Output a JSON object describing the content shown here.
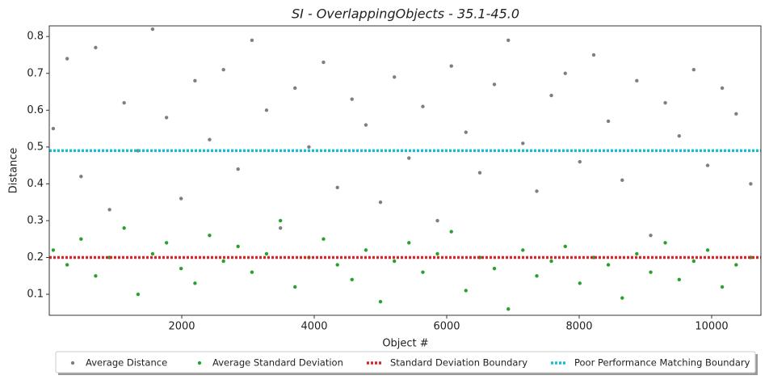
{
  "chart_data": {
    "type": "scatter",
    "title": "SI - OverlappingObjects - 35.1-45.0",
    "x_label": "Object #",
    "y_label": "Distance",
    "xlim": [
      0,
      10744
    ],
    "ylim": [
      0.043,
      0.829
    ],
    "xticks": [
      2000,
      4000,
      6000,
      8000,
      10000
    ],
    "yticks": [
      0.1,
      0.2,
      0.3,
      0.4,
      0.5,
      0.6,
      0.7,
      0.8
    ],
    "series": [
      {
        "name": "Average Distance",
        "color": "#7f7f7f",
        "x": [
          60,
          270,
          480,
          700,
          910,
          1130,
          1340,
          1560,
          1770,
          1990,
          2200,
          2420,
          2630,
          2850,
          3060,
          3280,
          3490,
          3710,
          3920,
          4140,
          4350,
          4570,
          4780,
          5000,
          5210,
          5430,
          5640,
          5860,
          6070,
          6290,
          6500,
          6720,
          6930,
          7150,
          7360,
          7580,
          7790,
          8010,
          8220,
          8440,
          8650,
          8870,
          9080,
          9300,
          9510,
          9730,
          9940,
          10160,
          10370,
          10590
        ],
        "values": [
          0.55,
          0.74,
          0.42,
          0.77,
          0.33,
          0.62,
          0.49,
          0.82,
          0.58,
          0.36,
          0.68,
          0.52,
          0.71,
          0.44,
          0.79,
          0.6,
          0.28,
          0.66,
          0.5,
          0.73,
          0.39,
          0.63,
          0.56,
          0.35,
          0.69,
          0.47,
          0.61,
          0.3,
          0.72,
          0.54,
          0.43,
          0.67,
          0.79,
          0.51,
          0.38,
          0.64,
          0.7,
          0.46,
          0.75,
          0.57,
          0.41,
          0.68,
          0.26,
          0.62,
          0.53,
          0.71,
          0.45,
          0.66,
          0.59,
          0.4
        ]
      },
      {
        "name": "Average Standard Deviation",
        "color": "#2ca02c",
        "x": [
          60,
          270,
          480,
          700,
          910,
          1130,
          1340,
          1560,
          1770,
          1990,
          2200,
          2420,
          2630,
          2850,
          3060,
          3280,
          3490,
          3710,
          3920,
          4140,
          4350,
          4570,
          4780,
          5000,
          5210,
          5430,
          5640,
          5860,
          6070,
          6290,
          6500,
          6720,
          6930,
          7150,
          7360,
          7580,
          7790,
          8010,
          8220,
          8440,
          8650,
          8870,
          9080,
          9300,
          9510,
          9730,
          9940,
          10160,
          10370,
          10590
        ],
        "values": [
          0.22,
          0.18,
          0.25,
          0.15,
          0.2,
          0.28,
          0.1,
          0.21,
          0.24,
          0.17,
          0.13,
          0.26,
          0.19,
          0.23,
          0.16,
          0.21,
          0.3,
          0.12,
          0.2,
          0.25,
          0.18,
          0.14,
          0.22,
          0.08,
          0.19,
          0.24,
          0.16,
          0.21,
          0.27,
          0.11,
          0.2,
          0.17,
          0.06,
          0.22,
          0.15,
          0.19,
          0.23,
          0.13,
          0.2,
          0.18,
          0.09,
          0.21,
          0.16,
          0.24,
          0.14,
          0.19,
          0.22,
          0.12,
          0.18,
          0.2
        ]
      },
      {
        "name": "Standard Deviation Boundary",
        "color": "#d62728",
        "value": 0.2
      },
      {
        "name": "Poor Performance Matching Boundary",
        "color": "#17becf",
        "value": 0.49
      }
    ]
  }
}
